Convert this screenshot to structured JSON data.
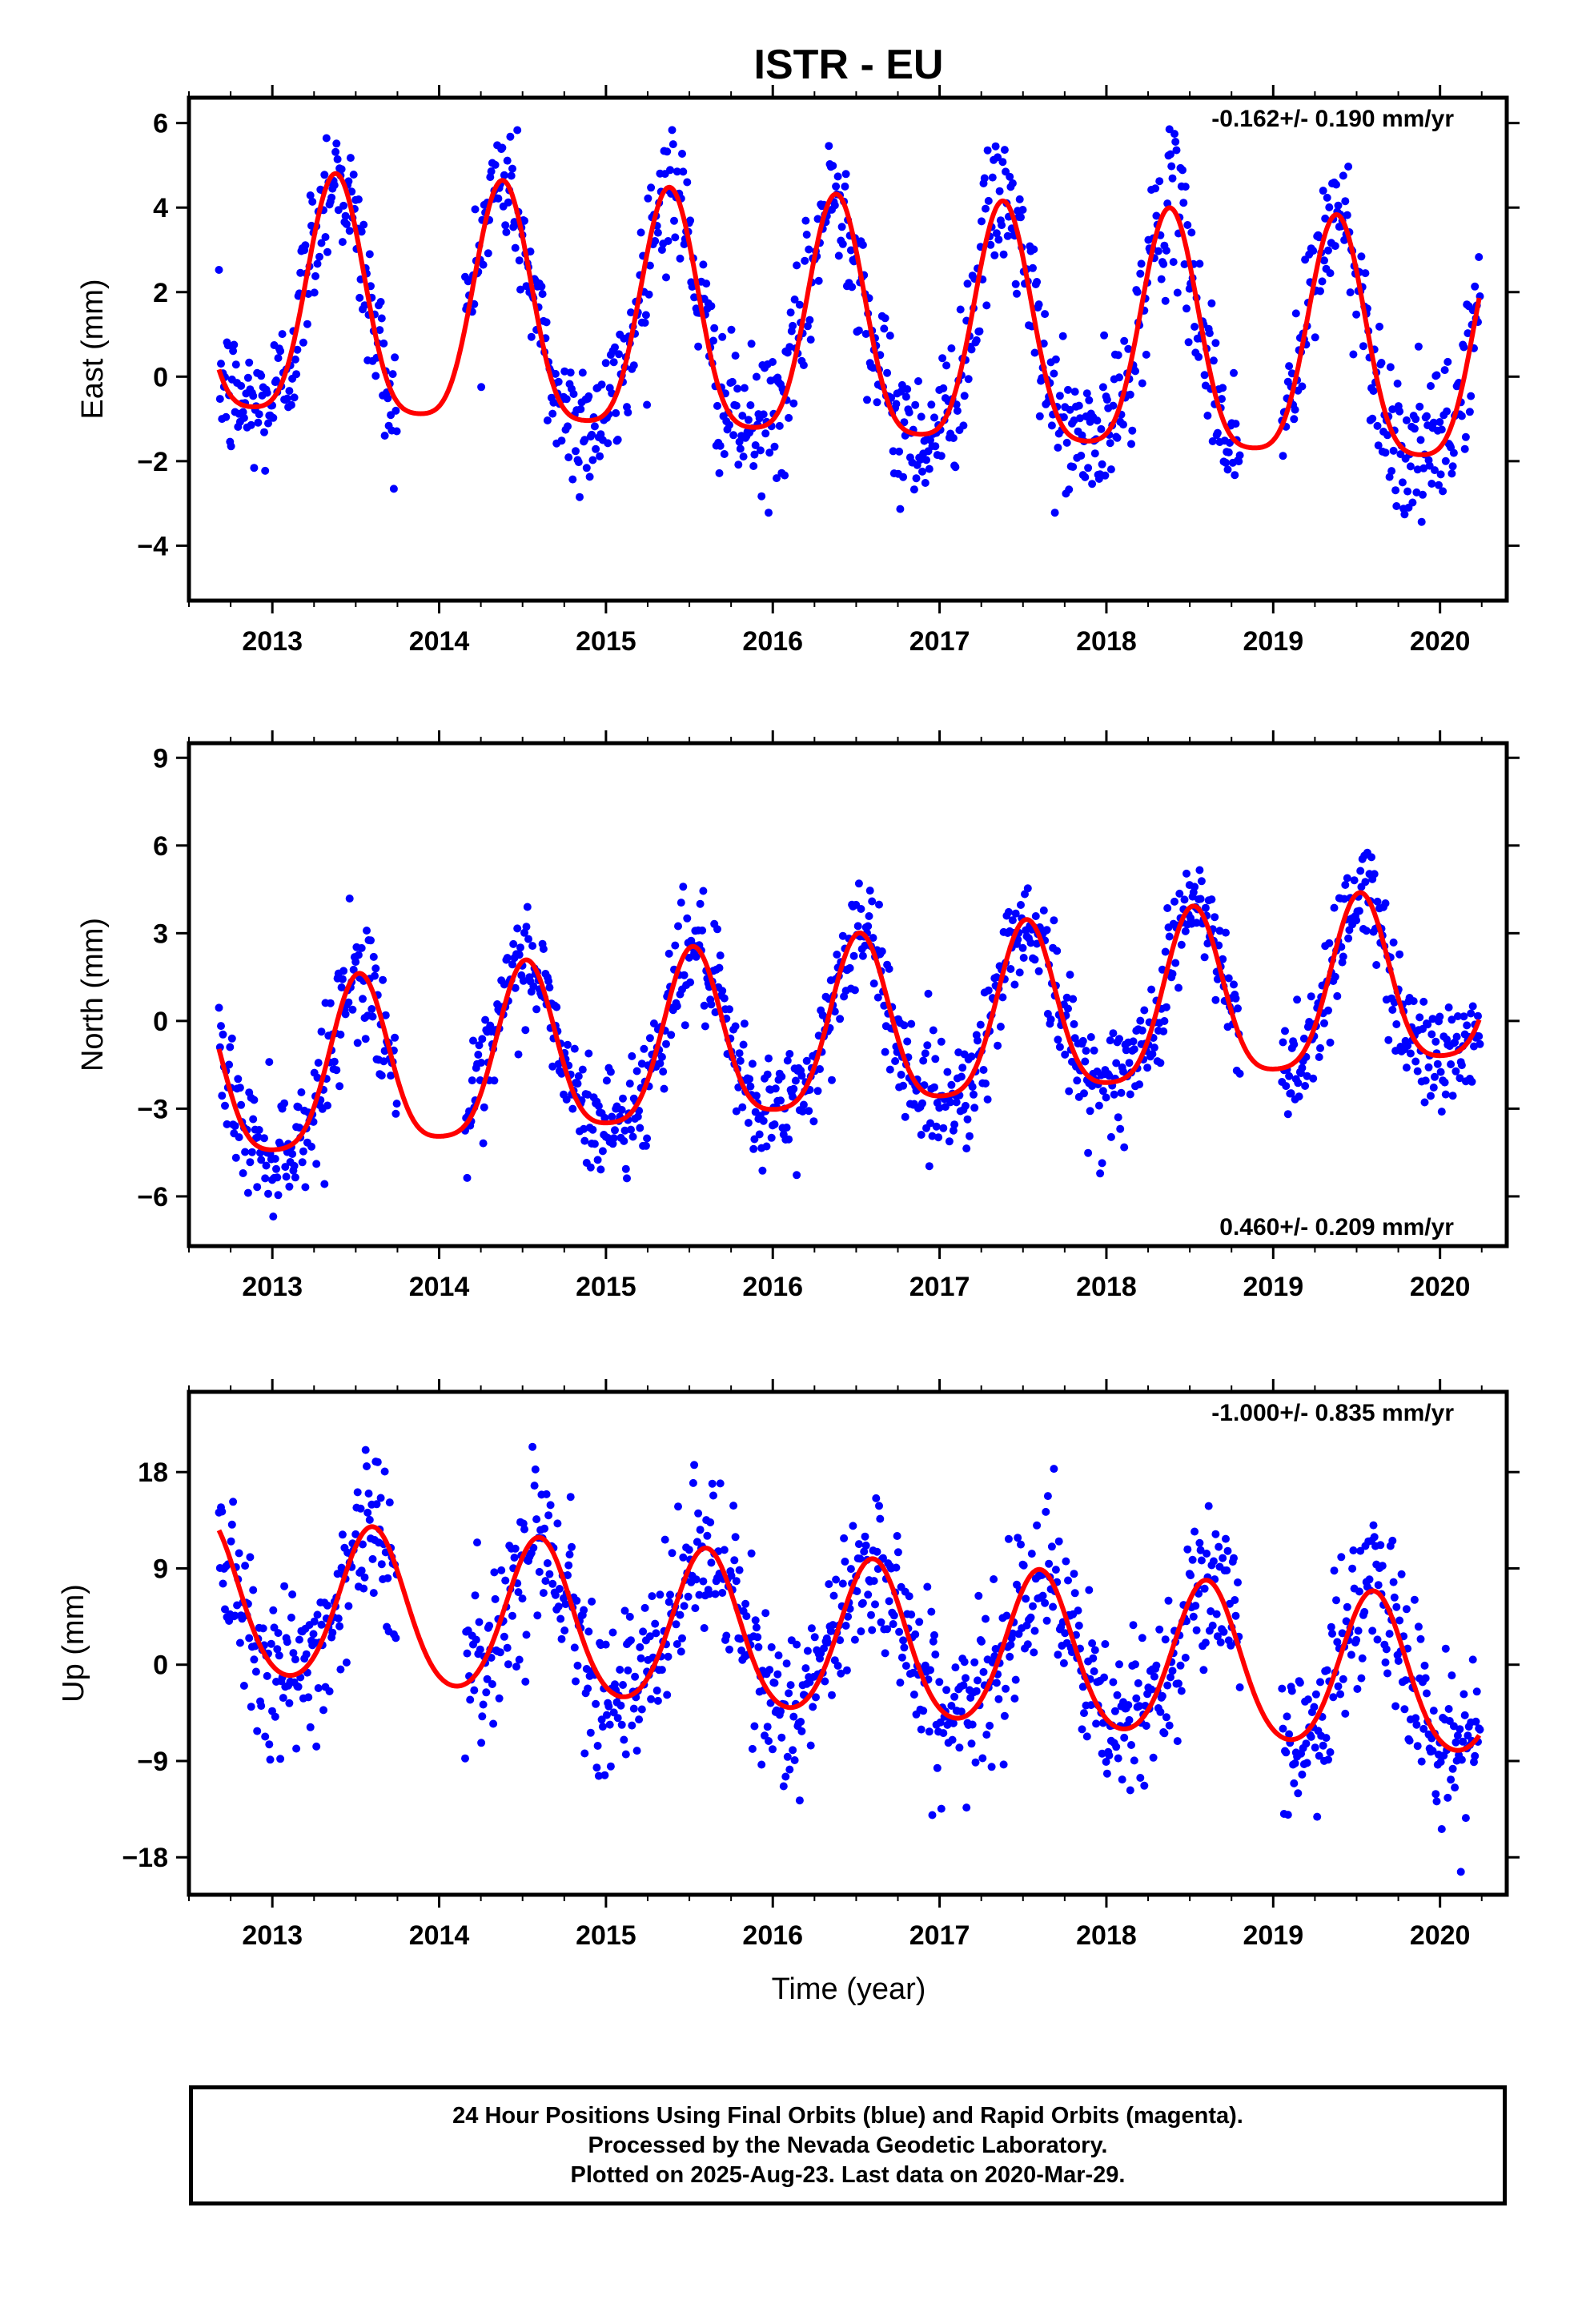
{
  "chart_data": {
    "type": "scatter",
    "title": "ISTR - EU",
    "xlabel": "Time (year)",
    "x_range": [
      2012.5,
      2020.4
    ],
    "x_ticks": [
      2013,
      2014,
      2015,
      2016,
      2017,
      2018,
      2019,
      2020
    ],
    "x_tick_labels": [
      "2013",
      "2014",
      "2015",
      "2016",
      "2017",
      "2018",
      "2019",
      "2020"
    ],
    "data_range": [
      2012.68,
      2020.24
    ],
    "data_gaps": [
      [
        2013.75,
        2014.15
      ],
      [
        2018.8,
        2019.05
      ]
    ],
    "series_colors": {
      "final_orbits": "#0000ff",
      "model_fit": "#ff0000",
      "rapid_orbits": "#ff00ff"
    },
    "panels": [
      {
        "ylabel": "East (mm)",
        "ylim": [
          -5.3,
          6.6
        ],
        "yticks": [
          -4,
          -2,
          0,
          2,
          4,
          6
        ],
        "ytick_labels": [
          "−4",
          "−2",
          "0",
          "2",
          "4",
          "6"
        ],
        "rate_label": "-0.162+/- 0.190 mm/yr",
        "rate_position": "top-right",
        "trend_mm_per_yr": -0.162,
        "offset_mm": 0.9,
        "annual_amplitude_mm": 2.8,
        "annual_peak_phase": 0.38,
        "semiannual_amplitude_mm": 0.6,
        "semiannual_peak_phase": 0.38,
        "scatter_sd_mm": 0.85
      },
      {
        "ylabel": "North (mm)",
        "ylim": [
          -7.7,
          9.5
        ],
        "yticks": [
          -6,
          -3,
          0,
          3,
          6,
          9
        ],
        "ytick_labels": [
          "−6",
          "−3",
          "0",
          "3",
          "6",
          "9"
        ],
        "rate_label": "0.460+/- 0.209 mm/yr",
        "rate_position": "bottom-right",
        "trend_mm_per_yr": 0.46,
        "offset_mm": -0.5,
        "annual_amplitude_mm": 2.9,
        "annual_peak_phase": 0.52,
        "semiannual_amplitude_mm": 0.6,
        "semiannual_peak_phase": 0.52,
        "scatter_sd_mm": 1.0
      },
      {
        "ylabel": "Up (mm)",
        "ylim": [
          -21.5,
          25.5
        ],
        "yticks": [
          -18,
          -9,
          0,
          9,
          18
        ],
        "ytick_labels": [
          "−18",
          "−9",
          "0",
          "9",
          "18"
        ],
        "rate_label": "-1.000+/- 0.835 mm/yr",
        "rate_position": "top-right",
        "trend_mm_per_yr": -1.0,
        "offset_mm": 2.0,
        "annual_amplitude_mm": 7.2,
        "annual_peak_phase": 0.6,
        "semiannual_amplitude_mm": 0.8,
        "semiannual_peak_phase": 0.6,
        "scatter_sd_mm": 3.8
      }
    ]
  },
  "footer": {
    "line1": "24 Hour Positions Using Final Orbits (blue) and Rapid Orbits (magenta).",
    "line2": "Processed by the Nevada Geodetic Laboratory.",
    "line3": "Plotted on 2025-Aug-23. Last data on 2020-Mar-29."
  }
}
